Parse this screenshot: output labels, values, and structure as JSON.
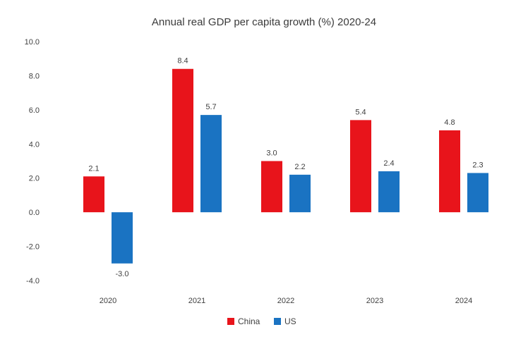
{
  "chart_data": {
    "type": "bar",
    "title": "Annual real GDP per capita growth (%) 2020-24",
    "categories": [
      "2020",
      "2021",
      "2022",
      "2023",
      "2024"
    ],
    "series": [
      {
        "name": "China",
        "color": "#e8141b",
        "values": [
          2.1,
          8.4,
          3.0,
          5.4,
          4.8
        ],
        "labels": [
          "2.1",
          "8.4",
          "3.0",
          "5.4",
          "4.8"
        ]
      },
      {
        "name": "US",
        "color": "#1a73c2",
        "values": [
          -3.0,
          5.7,
          2.2,
          2.4,
          2.3
        ],
        "labels": [
          "-3.0",
          "5.7",
          "2.2",
          "2.4",
          "2.3"
        ]
      }
    ],
    "yticks": [
      10.0,
      8.0,
      6.0,
      4.0,
      2.0,
      0.0,
      -2.0,
      -4.0
    ],
    "ytick_labels": [
      "10.0",
      "8.0",
      "6.0",
      "4.0",
      "2.0",
      "0.0",
      "-2.0",
      "-4.0"
    ],
    "ylim": [
      -4.0,
      10.0
    ],
    "grid": false,
    "legend_position": "bottom",
    "xlabel": "",
    "ylabel": ""
  }
}
